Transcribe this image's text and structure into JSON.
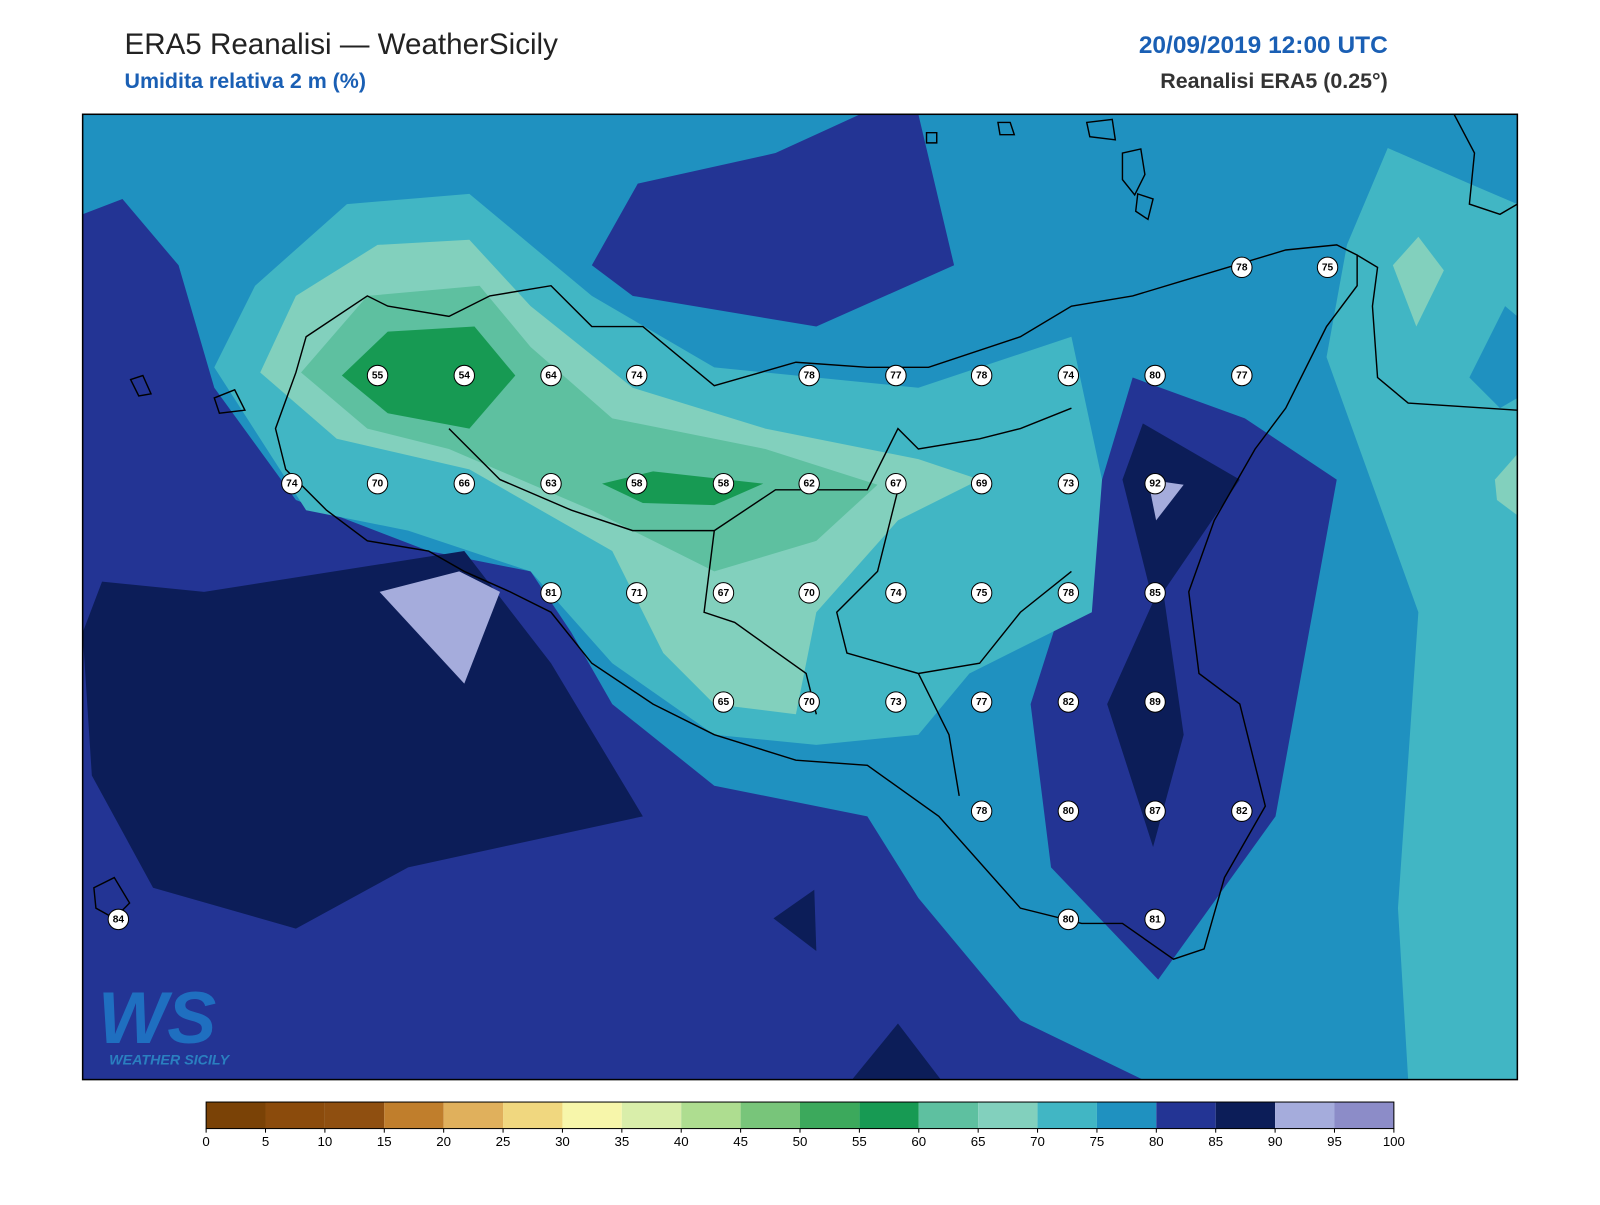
{
  "header": {
    "title": "ERA5 Reanalisi — WeatherSicily",
    "subtitle": "Umidita relativa 2 m (%)",
    "datetime": "20/09/2019 12:00 UTC",
    "source": "Reanalisi ERA5 (0.25°)"
  },
  "stations": [
    78,
    75,
    55,
    54,
    64,
    74,
    78,
    77,
    78,
    74,
    80,
    77,
    74,
    70,
    66,
    63,
    58,
    58,
    62,
    67,
    69,
    73,
    92,
    81,
    71,
    67,
    70,
    74,
    75,
    78,
    85,
    65,
    70,
    73,
    77,
    82,
    89,
    78,
    80,
    87,
    82,
    84,
    80,
    81
  ],
  "colorbar": {
    "ticks": [
      0,
      5,
      10,
      15,
      20,
      25,
      30,
      35,
      40,
      45,
      50,
      55,
      60,
      65,
      70,
      75,
      80,
      85,
      90,
      95,
      100
    ],
    "colors": [
      "#7a4206",
      "#8b4b0c",
      "#8f4f10",
      "#c07e2c",
      "#e0b05c",
      "#f0d77f",
      "#f7f6aa",
      "#d9eeaa",
      "#aedd90",
      "#78c57a",
      "#3ca95c",
      "#179a53",
      "#5ec0a0",
      "#82d0bd",
      "#41b6c4",
      "#1f91c0",
      "#233494",
      "#0c1d58",
      "#a5acdc",
      "#8c8cc8"
    ]
  },
  "logo": {
    "mark": "WS",
    "name": "WEATHER SICILY"
  }
}
